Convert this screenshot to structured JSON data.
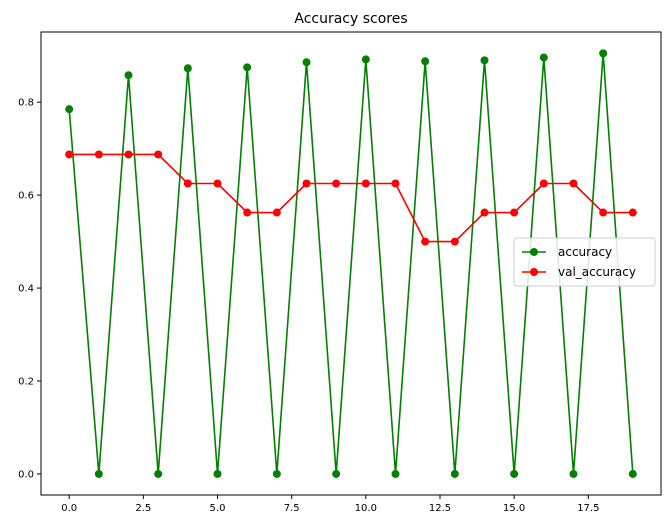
{
  "chart_data": {
    "type": "line",
    "title": "Accuracy scores",
    "xlabel": "",
    "ylabel": "",
    "xlim": [
      -0.95,
      19.95
    ],
    "ylim": [
      -0.0453,
      0.951
    ],
    "xticks": [
      0.0,
      2.5,
      5.0,
      7.5,
      10.0,
      12.5,
      15.0,
      17.5
    ],
    "xtick_labels": [
      "0.0",
      "2.5",
      "5.0",
      "7.5",
      "10.0",
      "12.5",
      "15.0",
      "17.5"
    ],
    "yticks": [
      0.0,
      0.2,
      0.4,
      0.6,
      0.8
    ],
    "ytick_labels": [
      "0.0",
      "0.2",
      "0.4",
      "0.6",
      "0.8"
    ],
    "grid": false,
    "legend_position": "center-right",
    "x": [
      0,
      1,
      2,
      3,
      4,
      5,
      6,
      7,
      8,
      9,
      10,
      11,
      12,
      13,
      14,
      15,
      16,
      17,
      18,
      19
    ],
    "series": [
      {
        "name": "accuracy",
        "color": "#008000",
        "values": [
          0.785,
          0.0,
          0.858,
          0.0,
          0.873,
          0.0,
          0.875,
          0.0,
          0.886,
          0.0,
          0.892,
          0.0,
          0.888,
          0.0,
          0.89,
          0.0,
          0.896,
          0.0,
          0.905,
          0.0
        ]
      },
      {
        "name": "val_accuracy",
        "color": "#ff0000",
        "values": [
          0.6875,
          0.6875,
          0.6875,
          0.6875,
          0.625,
          0.625,
          0.5625,
          0.5625,
          0.625,
          0.625,
          0.625,
          0.625,
          0.5,
          0.5,
          0.5625,
          0.5625,
          0.625,
          0.625,
          0.5625,
          0.5625
        ]
      }
    ]
  }
}
